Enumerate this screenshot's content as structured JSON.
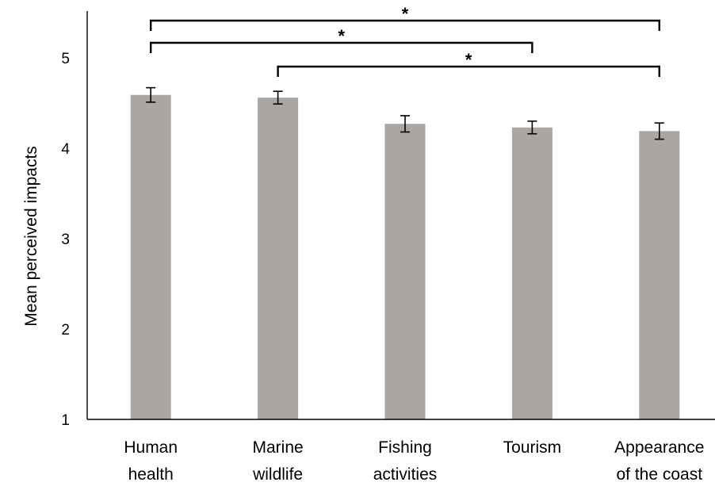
{
  "chart_data": {
    "type": "bar",
    "title": "",
    "xlabel": "",
    "ylabel": "Mean perceived impacts",
    "ylim": [
      1,
      5
    ],
    "yticks": [
      1,
      2,
      3,
      4,
      5
    ],
    "categories": [
      [
        "Human",
        "health"
      ],
      [
        "Marine",
        "wildlife"
      ],
      [
        "Fishing",
        "activities"
      ],
      [
        "Tourism"
      ],
      [
        "Appearance",
        "of the coast"
      ]
    ],
    "values": [
      4.59,
      4.56,
      4.27,
      4.23,
      4.19
    ],
    "errors": [
      0.08,
      0.07,
      0.09,
      0.07,
      0.09
    ],
    "bar_color": "#aaa6a4",
    "grid": false,
    "significance": [
      {
        "from": 0,
        "to": 4,
        "label": "*"
      },
      {
        "from": 0,
        "to": 3,
        "label": "*"
      },
      {
        "from": 1,
        "to": 4,
        "label": "*"
      }
    ]
  }
}
